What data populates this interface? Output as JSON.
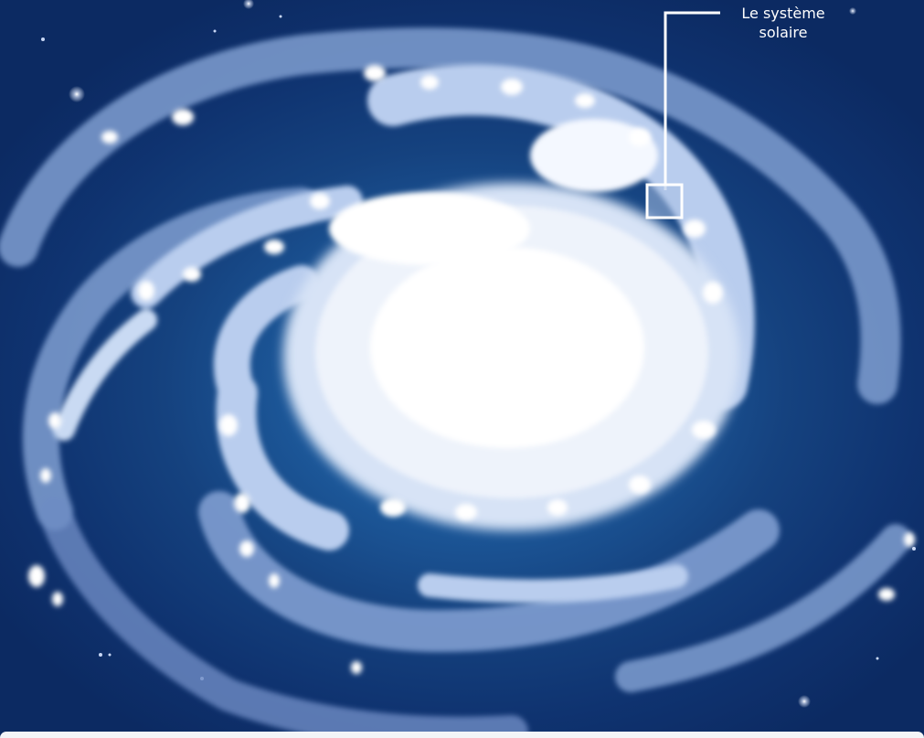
{
  "callout": {
    "label_line1": "Le système",
    "label_line2": "solaire"
  },
  "colors": {
    "space_dark": "#0c2a62",
    "space_glow": "#2a78b8",
    "arm_pale": "#7f9dd0",
    "arm_light": "#b9cdee",
    "star_white": "#ffffff",
    "callout_line": "#ffffff"
  }
}
